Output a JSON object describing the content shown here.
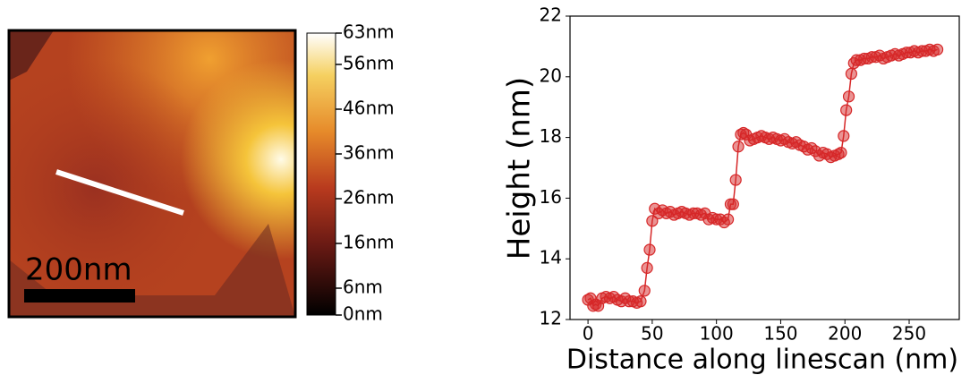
{
  "chart_data": [
    {
      "type": "image",
      "scale_bar_label": "200nm",
      "colorbar": {
        "clim": [
          0,
          63
        ],
        "ticks": [
          {
            "value": 63,
            "label": "63nm"
          },
          {
            "value": 56,
            "label": "56nm"
          },
          {
            "value": 46,
            "label": "46nm"
          },
          {
            "value": 36,
            "label": "36nm"
          },
          {
            "value": 26,
            "label": "26nm"
          },
          {
            "value": 16,
            "label": "16nm"
          },
          {
            "value": 6,
            "label": "6nm"
          },
          {
            "value": 0,
            "label": "0nm"
          }
        ]
      }
    },
    {
      "type": "line",
      "xlabel": "Distance along linescan (nm)",
      "ylabel": "Height (nm)",
      "color": "#d62728",
      "x": [
        0,
        2,
        4,
        6,
        8,
        11,
        14,
        17,
        20,
        23,
        26,
        29,
        32,
        35,
        38,
        41,
        44,
        46,
        48,
        50,
        52,
        55,
        58,
        61,
        64,
        67,
        70,
        73,
        76,
        79,
        82,
        85,
        88,
        91,
        94,
        97,
        100,
        103,
        106,
        109,
        111,
        113,
        115,
        117,
        119,
        121,
        123,
        126,
        129,
        132,
        135,
        138,
        141,
        144,
        147,
        150,
        153,
        156,
        159,
        162,
        165,
        168,
        171,
        174,
        177,
        180,
        183,
        186,
        189,
        192,
        195,
        197,
        199,
        201,
        203,
        205,
        207,
        209,
        212,
        215,
        218,
        221,
        224,
        227,
        230,
        233,
        236,
        239,
        242,
        245,
        248,
        251,
        254,
        257,
        260,
        263,
        266,
        269,
        272
      ],
      "values": [
        12.65,
        12.7,
        12.45,
        12.5,
        12.45,
        12.7,
        12.75,
        12.7,
        12.75,
        12.65,
        12.6,
        12.7,
        12.6,
        12.6,
        12.55,
        12.6,
        12.95,
        13.7,
        14.3,
        15.25,
        15.65,
        15.5,
        15.6,
        15.5,
        15.55,
        15.45,
        15.5,
        15.55,
        15.5,
        15.45,
        15.5,
        15.5,
        15.45,
        15.5,
        15.3,
        15.35,
        15.3,
        15.3,
        15.2,
        15.3,
        15.8,
        15.8,
        16.6,
        17.7,
        18.1,
        18.15,
        18.1,
        17.9,
        17.95,
        18.0,
        18.05,
        18.0,
        17.95,
        18.0,
        17.95,
        17.9,
        17.95,
        17.85,
        17.8,
        17.85,
        17.75,
        17.7,
        17.6,
        17.65,
        17.55,
        17.4,
        17.5,
        17.45,
        17.35,
        17.4,
        17.45,
        17.5,
        18.05,
        18.9,
        19.35,
        20.1,
        20.45,
        20.55,
        20.55,
        20.6,
        20.6,
        20.65,
        20.65,
        20.7,
        20.6,
        20.65,
        20.7,
        20.75,
        20.7,
        20.75,
        20.8,
        20.8,
        20.85,
        20.8,
        20.85,
        20.85,
        20.9,
        20.85,
        20.9
      ],
      "xlim": [
        -14,
        289
      ],
      "xticks": [
        0,
        50,
        100,
        150,
        200,
        250
      ],
      "ylim": [
        12,
        22
      ],
      "yticks": [
        12,
        14,
        16,
        18,
        20,
        22
      ]
    }
  ]
}
